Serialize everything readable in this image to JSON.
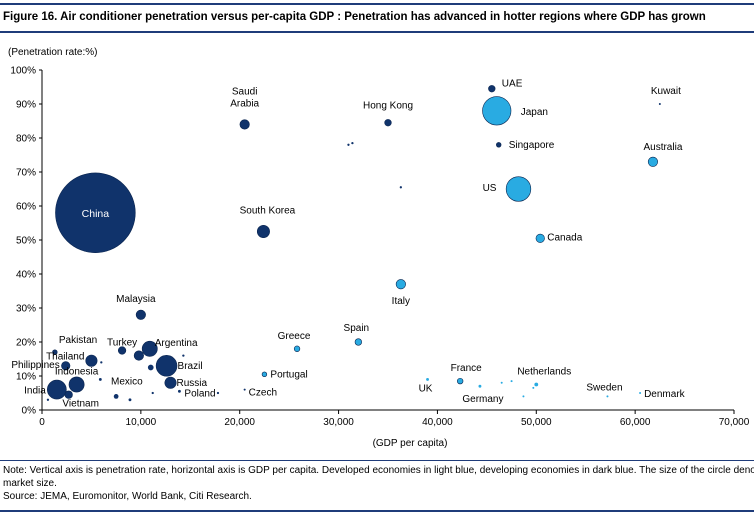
{
  "figure": {
    "title": "Figure 16. Air conditioner penetration versus per-capita GDP : Penetration has advanced in hotter regions where GDP has grown",
    "note_line1": "Note: Vertical axis is penetration rate, horizontal axis is GDP per capita. Developed economies in light blue, developing economies in dark blue. The size of the circle denotes",
    "note_line2": "market size.",
    "source": "Source: JEMA, Euromonitor, World Bank, Citi Research."
  },
  "colors": {
    "developed": "#29abe2",
    "developing": "#10336b",
    "rule": "#1f3c7a",
    "axis": "#000000"
  },
  "chart_data": {
    "type": "scatter",
    "title": "Air conditioner penetration versus per-capita GDP",
    "xlabel": "(GDP per capita)",
    "ylabel": "(Penetration rate:%)",
    "xlim": [
      0,
      70000
    ],
    "ylim": [
      0,
      100
    ],
    "xticks": [
      0,
      10000,
      20000,
      30000,
      40000,
      50000,
      60000,
      70000
    ],
    "xtick_labels": [
      "0",
      "10,000",
      "20,000",
      "30,000",
      "40,000",
      "50,000",
      "60,000",
      "70,000"
    ],
    "yticks": [
      0,
      10,
      20,
      30,
      40,
      50,
      60,
      70,
      80,
      90,
      100
    ],
    "ytick_labels": [
      "0%",
      "10%",
      "20%",
      "30%",
      "40%",
      "50%",
      "60%",
      "70%",
      "80%",
      "90%",
      "100%"
    ],
    "size_note": "circle size denotes market size (relative units)",
    "points": [
      {
        "name": "China",
        "x": 5400,
        "y": 58,
        "size": 42,
        "group": "developing"
      },
      {
        "name": "Saudi\nArabia",
        "x": 20500,
        "y": 84,
        "size": 5,
        "group": "developing"
      },
      {
        "name": "Hong Kong",
        "x": 35000,
        "y": 84.5,
        "size": 3.5,
        "group": "developing"
      },
      {
        "name": "UAE",
        "x": 45500,
        "y": 94.5,
        "size": 3.5,
        "group": "developing"
      },
      {
        "name": "Japan",
        "x": 46000,
        "y": 88,
        "size": 15,
        "group": "developed"
      },
      {
        "name": "Kuwait",
        "x": 62500,
        "y": 90,
        "size": 1,
        "group": "developing"
      },
      {
        "name": "Singapore",
        "x": 46200,
        "y": 78,
        "size": 2.5,
        "group": "developing"
      },
      {
        "name": "Australia",
        "x": 61800,
        "y": 73,
        "size": 5,
        "group": "developed"
      },
      {
        "name": "US",
        "x": 48200,
        "y": 65,
        "size": 13,
        "group": "developed"
      },
      {
        "name": "Canada",
        "x": 50400,
        "y": 50.5,
        "size": 4.5,
        "group": "developed"
      },
      {
        "name": "South Korea",
        "x": 22400,
        "y": 52.5,
        "size": 6.5,
        "group": "developing"
      },
      {
        "name": "Italy",
        "x": 36300,
        "y": 37,
        "size": 5,
        "group": "developed"
      },
      {
        "name": "Malaysia",
        "x": 10000,
        "y": 28,
        "size": 5,
        "group": "developing"
      },
      {
        "name": "Greece",
        "x": 25800,
        "y": 18,
        "size": 3,
        "group": "developed"
      },
      {
        "name": "Spain",
        "x": 32000,
        "y": 20,
        "size": 3.5,
        "group": "developed"
      },
      {
        "name": "Portugal",
        "x": 22500,
        "y": 10.5,
        "size": 2.5,
        "group": "developed"
      },
      {
        "name": "Czech",
        "x": 20500,
        "y": 6,
        "size": 1,
        "group": "developing"
      },
      {
        "name": "Pakistan",
        "x": 1300,
        "y": 17,
        "size": 2.5,
        "group": "developing"
      },
      {
        "name": "Thailand",
        "x": 5000,
        "y": 14.5,
        "size": 6,
        "group": "developing"
      },
      {
        "name": "Turkey",
        "x": 8100,
        "y": 17.5,
        "size": 4,
        "group": "developing"
      },
      {
        "name": "Argentina",
        "x": 10900,
        "y": 18,
        "size": 8,
        "group": "developing"
      },
      {
        "name": "Philippines",
        "x": 2400,
        "y": 13,
        "size": 4.5,
        "group": "developing"
      },
      {
        "name": "Indonesia",
        "x": 3500,
        "y": 7.5,
        "size": 8,
        "group": "developing"
      },
      {
        "name": "India",
        "x": 1500,
        "y": 6,
        "size": 10,
        "group": "developing"
      },
      {
        "name": "Vietnam",
        "x": 2700,
        "y": 4.5,
        "size": 4,
        "group": "developing"
      },
      {
        "name": "Mexico",
        "x": 9800,
        "y": 16,
        "size": 5,
        "group": "developing"
      },
      {
        "name": "Brazil",
        "x": 12600,
        "y": 13,
        "size": 11,
        "group": "developing"
      },
      {
        "name": "Russia",
        "x": 13000,
        "y": 8,
        "size": 6,
        "group": "developing"
      },
      {
        "name": "Poland",
        "x": 13900,
        "y": 5.5,
        "size": 1.5,
        "group": "developing"
      },
      {
        "name": "France",
        "x": 42300,
        "y": 8.5,
        "size": 3,
        "group": "developed"
      },
      {
        "name": "UK",
        "x": 39000,
        "y": 9,
        "size": 1.5,
        "group": "developed"
      },
      {
        "name": "Germany",
        "x": 44300,
        "y": 7,
        "size": 1.5,
        "group": "developed"
      },
      {
        "name": "Netherlands",
        "x": 50000,
        "y": 7.5,
        "size": 2,
        "group": "developed"
      },
      {
        "name": "Sweden",
        "x": 57200,
        "y": 4,
        "size": 1,
        "group": "developed"
      },
      {
        "name": "Denmark",
        "x": 60500,
        "y": 5,
        "size": 1,
        "group": "developed"
      }
    ],
    "unlabeled_points": [
      {
        "x": 31000,
        "y": 78,
        "size": 1.2,
        "group": "developing"
      },
      {
        "x": 31400,
        "y": 78.5,
        "size": 1.2,
        "group": "developing"
      },
      {
        "x": 36300,
        "y": 65.5,
        "size": 1.2,
        "group": "developing"
      },
      {
        "x": 14300,
        "y": 16,
        "size": 1.2,
        "group": "developing"
      },
      {
        "x": 6000,
        "y": 14,
        "size": 1.2,
        "group": "developing"
      },
      {
        "x": 5900,
        "y": 9,
        "size": 1.5,
        "group": "developing"
      },
      {
        "x": 7500,
        "y": 4,
        "size": 2.5,
        "group": "developing"
      },
      {
        "x": 8900,
        "y": 3,
        "size": 1.5,
        "group": "developing"
      },
      {
        "x": 11200,
        "y": 5,
        "size": 1.2,
        "group": "developing"
      },
      {
        "x": 11000,
        "y": 12.5,
        "size": 3,
        "group": "developing"
      },
      {
        "x": 17800,
        "y": 5,
        "size": 1.2,
        "group": "developing"
      },
      {
        "x": 600,
        "y": 3,
        "size": 1.2,
        "group": "developing"
      },
      {
        "x": 46500,
        "y": 8,
        "size": 1,
        "group": "developed"
      },
      {
        "x": 47500,
        "y": 8.5,
        "size": 1,
        "group": "developed"
      },
      {
        "x": 49700,
        "y": 6.5,
        "size": 1,
        "group": "developed"
      },
      {
        "x": 48700,
        "y": 4,
        "size": 1,
        "group": "developed"
      }
    ]
  }
}
